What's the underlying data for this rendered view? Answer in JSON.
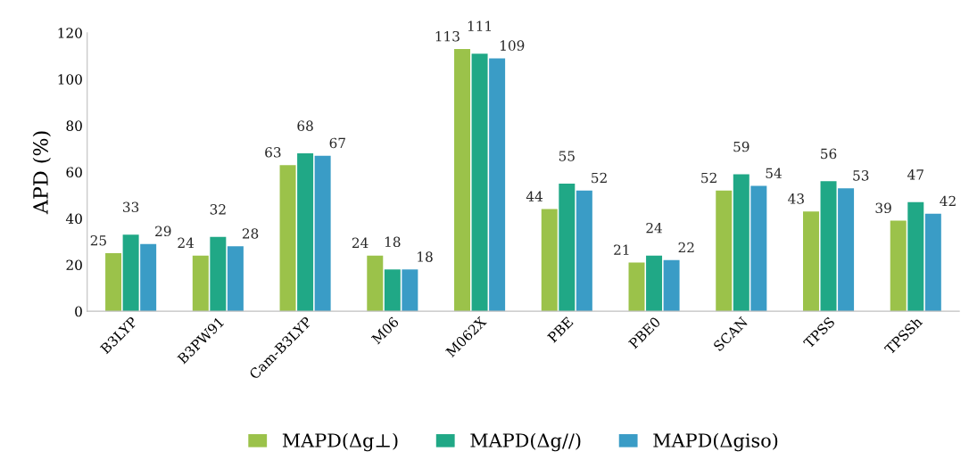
{
  "chart_data": {
    "type": "bar",
    "ylabel": "APD (%)",
    "categories": [
      "B3LYP",
      "B3PW91",
      "Cam-B3LYP",
      "M06",
      "M062X",
      "PBE",
      "PBE0",
      "SCAN",
      "TPSS",
      "TPSSh"
    ],
    "series": [
      {
        "name": "MAPD(Δg⊥)",
        "color": "#9bc24a",
        "values": [
          25,
          24,
          63,
          24,
          113,
          44,
          21,
          52,
          43,
          39
        ]
      },
      {
        "name": "MAPD(Δg//)",
        "color": "#20a886",
        "values": [
          33,
          32,
          68,
          18,
          111,
          55,
          24,
          59,
          56,
          47
        ]
      },
      {
        "name": "MAPD(Δgiso)",
        "color": "#3a9cc6",
        "values": [
          29,
          28,
          67,
          18,
          109,
          52,
          22,
          54,
          53,
          42
        ]
      }
    ],
    "ylim": [
      0,
      120
    ],
    "yticks": [
      0,
      20,
      40,
      60,
      80,
      100,
      120
    ],
    "data_labels": true,
    "grid": false,
    "legend": "bottom"
  }
}
